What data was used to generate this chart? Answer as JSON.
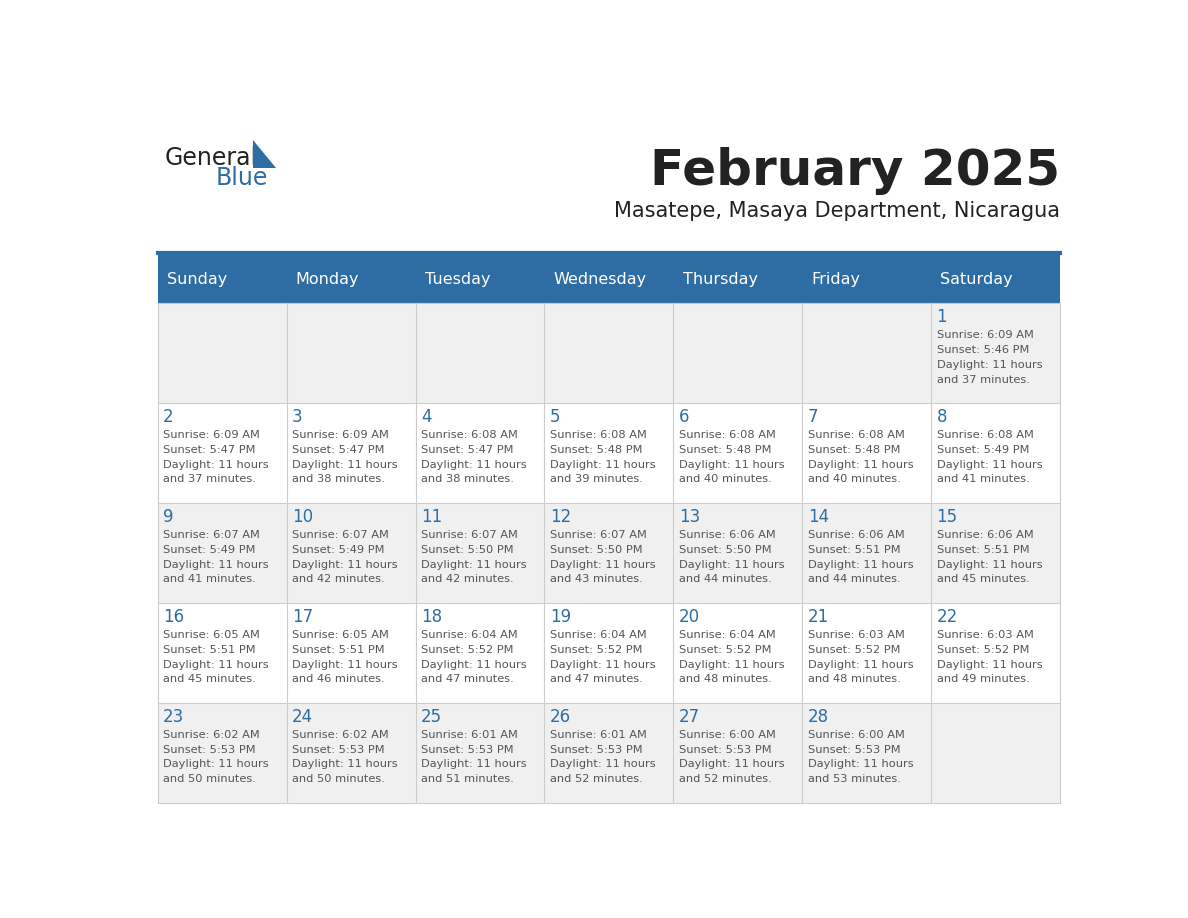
{
  "title": "February 2025",
  "subtitle": "Masatepe, Masaya Department, Nicaragua",
  "days_of_week": [
    "Sunday",
    "Monday",
    "Tuesday",
    "Wednesday",
    "Thursday",
    "Friday",
    "Saturday"
  ],
  "header_bg": "#2E6DA4",
  "header_text": "#FFFFFF",
  "cell_bg_light": "#F0F0F0",
  "cell_bg_white": "#FFFFFF",
  "day_number_color": "#2E6DA4",
  "info_text_color": "#555555",
  "title_color": "#222222",
  "subtitle_color": "#222222",
  "logo_general_color": "#222222",
  "logo_blue_color": "#2E6DA4",
  "weeks": [
    [
      {
        "day": null,
        "sunrise": null,
        "sunset": null,
        "daylight": null
      },
      {
        "day": null,
        "sunrise": null,
        "sunset": null,
        "daylight": null
      },
      {
        "day": null,
        "sunrise": null,
        "sunset": null,
        "daylight": null
      },
      {
        "day": null,
        "sunrise": null,
        "sunset": null,
        "daylight": null
      },
      {
        "day": null,
        "sunrise": null,
        "sunset": null,
        "daylight": null
      },
      {
        "day": null,
        "sunrise": null,
        "sunset": null,
        "daylight": null
      },
      {
        "day": 1,
        "sunrise": "6:09 AM",
        "sunset": "5:46 PM",
        "daylight": "11 hours\nand 37 minutes."
      }
    ],
    [
      {
        "day": 2,
        "sunrise": "6:09 AM",
        "sunset": "5:47 PM",
        "daylight": "11 hours\nand 37 minutes."
      },
      {
        "day": 3,
        "sunrise": "6:09 AM",
        "sunset": "5:47 PM",
        "daylight": "11 hours\nand 38 minutes."
      },
      {
        "day": 4,
        "sunrise": "6:08 AM",
        "sunset": "5:47 PM",
        "daylight": "11 hours\nand 38 minutes."
      },
      {
        "day": 5,
        "sunrise": "6:08 AM",
        "sunset": "5:48 PM",
        "daylight": "11 hours\nand 39 minutes."
      },
      {
        "day": 6,
        "sunrise": "6:08 AM",
        "sunset": "5:48 PM",
        "daylight": "11 hours\nand 40 minutes."
      },
      {
        "day": 7,
        "sunrise": "6:08 AM",
        "sunset": "5:48 PM",
        "daylight": "11 hours\nand 40 minutes."
      },
      {
        "day": 8,
        "sunrise": "6:08 AM",
        "sunset": "5:49 PM",
        "daylight": "11 hours\nand 41 minutes."
      }
    ],
    [
      {
        "day": 9,
        "sunrise": "6:07 AM",
        "sunset": "5:49 PM",
        "daylight": "11 hours\nand 41 minutes."
      },
      {
        "day": 10,
        "sunrise": "6:07 AM",
        "sunset": "5:49 PM",
        "daylight": "11 hours\nand 42 minutes."
      },
      {
        "day": 11,
        "sunrise": "6:07 AM",
        "sunset": "5:50 PM",
        "daylight": "11 hours\nand 42 minutes."
      },
      {
        "day": 12,
        "sunrise": "6:07 AM",
        "sunset": "5:50 PM",
        "daylight": "11 hours\nand 43 minutes."
      },
      {
        "day": 13,
        "sunrise": "6:06 AM",
        "sunset": "5:50 PM",
        "daylight": "11 hours\nand 44 minutes."
      },
      {
        "day": 14,
        "sunrise": "6:06 AM",
        "sunset": "5:51 PM",
        "daylight": "11 hours\nand 44 minutes."
      },
      {
        "day": 15,
        "sunrise": "6:06 AM",
        "sunset": "5:51 PM",
        "daylight": "11 hours\nand 45 minutes."
      }
    ],
    [
      {
        "day": 16,
        "sunrise": "6:05 AM",
        "sunset": "5:51 PM",
        "daylight": "11 hours\nand 45 minutes."
      },
      {
        "day": 17,
        "sunrise": "6:05 AM",
        "sunset": "5:51 PM",
        "daylight": "11 hours\nand 46 minutes."
      },
      {
        "day": 18,
        "sunrise": "6:04 AM",
        "sunset": "5:52 PM",
        "daylight": "11 hours\nand 47 minutes."
      },
      {
        "day": 19,
        "sunrise": "6:04 AM",
        "sunset": "5:52 PM",
        "daylight": "11 hours\nand 47 minutes."
      },
      {
        "day": 20,
        "sunrise": "6:04 AM",
        "sunset": "5:52 PM",
        "daylight": "11 hours\nand 48 minutes."
      },
      {
        "day": 21,
        "sunrise": "6:03 AM",
        "sunset": "5:52 PM",
        "daylight": "11 hours\nand 48 minutes."
      },
      {
        "day": 22,
        "sunrise": "6:03 AM",
        "sunset": "5:52 PM",
        "daylight": "11 hours\nand 49 minutes."
      }
    ],
    [
      {
        "day": 23,
        "sunrise": "6:02 AM",
        "sunset": "5:53 PM",
        "daylight": "11 hours\nand 50 minutes."
      },
      {
        "day": 24,
        "sunrise": "6:02 AM",
        "sunset": "5:53 PM",
        "daylight": "11 hours\nand 50 minutes."
      },
      {
        "day": 25,
        "sunrise": "6:01 AM",
        "sunset": "5:53 PM",
        "daylight": "11 hours\nand 51 minutes."
      },
      {
        "day": 26,
        "sunrise": "6:01 AM",
        "sunset": "5:53 PM",
        "daylight": "11 hours\nand 52 minutes."
      },
      {
        "day": 27,
        "sunrise": "6:00 AM",
        "sunset": "5:53 PM",
        "daylight": "11 hours\nand 52 minutes."
      },
      {
        "day": 28,
        "sunrise": "6:00 AM",
        "sunset": "5:53 PM",
        "daylight": "11 hours\nand 53 minutes."
      },
      {
        "day": null,
        "sunrise": null,
        "sunset": null,
        "daylight": null
      }
    ]
  ]
}
